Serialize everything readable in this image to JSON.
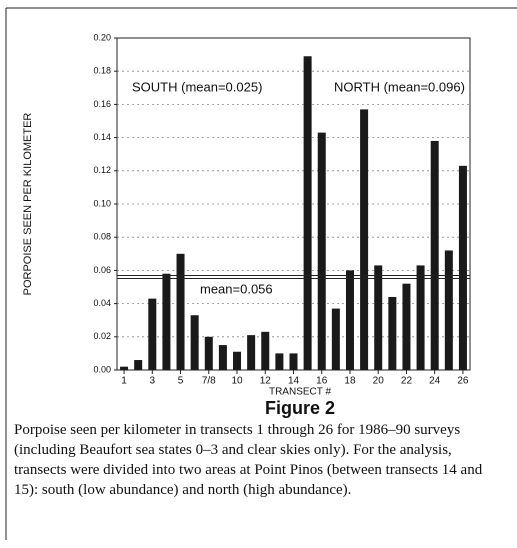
{
  "chart_data": {
    "type": "bar",
    "categories": [
      "1",
      null,
      "3",
      null,
      "5",
      null,
      "7/8",
      null,
      "10",
      null,
      "12",
      null,
      "14",
      null,
      "16",
      null,
      "18",
      null,
      "20",
      null,
      "22",
      null,
      "24",
      null,
      "26"
    ],
    "values": [
      0.002,
      0.006,
      0.043,
      0.058,
      0.07,
      0.033,
      0.02,
      0.015,
      0.011,
      0.021,
      0.023,
      0.01,
      0.01,
      0.189,
      0.143,
      0.037,
      0.06,
      0.157,
      0.063,
      0.044,
      0.052,
      0.063,
      0.138,
      0.072,
      0.123
    ],
    "color": "#1a1a1a",
    "xlabel": "TRANSECT #",
    "ylabel": "PORPOISE SEEN PER KILOMETER",
    "ylim": [
      0,
      0.2
    ],
    "yticks": [
      {
        "value": 0,
        "label": "0.00"
      },
      {
        "value": 0.02,
        "label": "0.02"
      },
      {
        "value": 0.04,
        "label": "0.04"
      },
      {
        "value": 0.06,
        "label": "0.06"
      },
      {
        "value": 0.08,
        "label": "0.08"
      },
      {
        "value": 0.1,
        "label": "0.10"
      },
      {
        "value": 0.12,
        "label": "0.12"
      },
      {
        "value": 0.14,
        "label": "0.14"
      },
      {
        "value": 0.16,
        "label": "0.16"
      },
      {
        "value": 0.18,
        "label": "0.18"
      },
      {
        "value": 0.2,
        "label": "0.20"
      }
    ],
    "grid": true,
    "reference_line": {
      "value": 0.056,
      "label": "mean=0.056"
    },
    "annotations": [
      "SOUTH (mean=0.025)",
      "NORTH (mean=0.096)"
    ]
  },
  "figure_label": "Figure 2",
  "caption": "Porpoise seen per kilometer in transects 1 through 26 for 1986–90 surveys (including Beaufort sea states 0–3 and clear skies only). For the analysis, transects were divided into two areas at Point Pinos (between transects 14 and 15): south (low abundance) and north (high abundance)."
}
